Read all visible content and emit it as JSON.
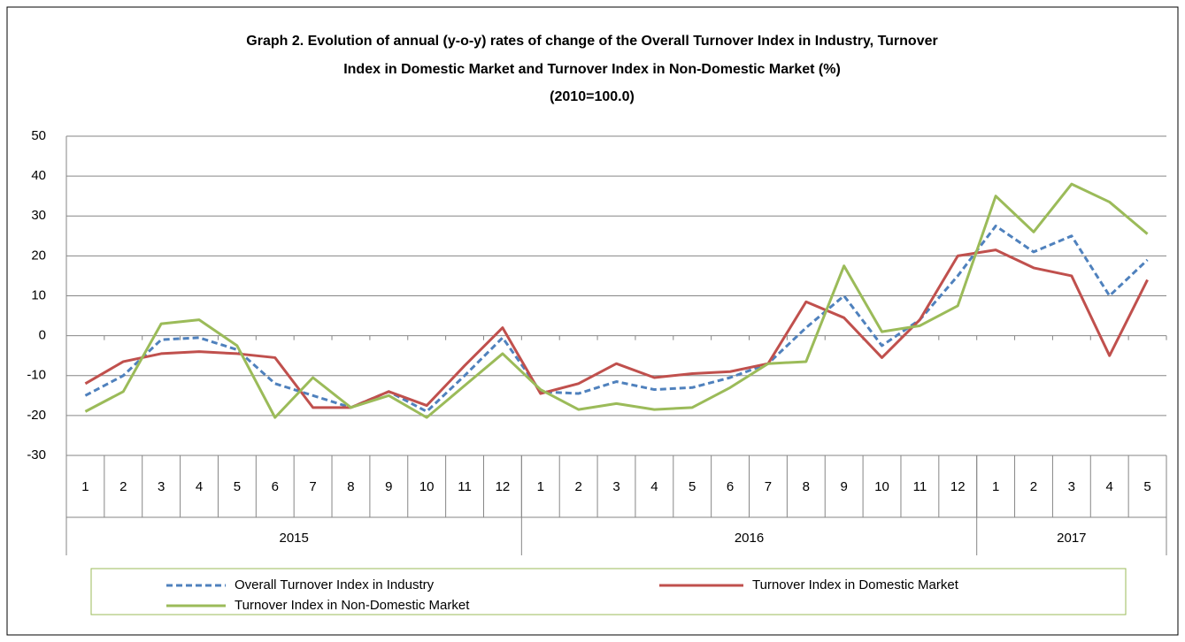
{
  "chart_data": {
    "type": "line",
    "title": [
      "Graph 2. Evolution of annual (y-o-y) rates of change of the  Overall Turnover Index in Industry, Turnover",
      "Index  in Domestic Market and Turnover Index in Non-Domestic Market  (%)",
      "(2010=100.0)"
    ],
    "groups": [
      {
        "label": "2015",
        "months": [
          "1",
          "2",
          "3",
          "4",
          "5",
          "6",
          "7",
          "8",
          "9",
          "10",
          "11",
          "12"
        ]
      },
      {
        "label": "2016",
        "months": [
          "1",
          "2",
          "3",
          "4",
          "5",
          "6",
          "7",
          "8",
          "9",
          "10",
          "11",
          "12"
        ]
      },
      {
        "label": "2017",
        "months": [
          "1",
          "2",
          "3",
          "4",
          "5"
        ]
      }
    ],
    "series": [
      {
        "name": "Overall Turnover Index in Industry",
        "color": "#4f81bd",
        "dash": true,
        "values": [
          -15,
          -10,
          -1,
          -0.5,
          -3.5,
          -12,
          -15,
          -18,
          -14,
          -19,
          -10,
          -0.5,
          -14,
          -14.5,
          -11.5,
          -13.5,
          -13,
          -10.5,
          -7,
          2,
          10,
          -2.5,
          4,
          15,
          27.5,
          21,
          25,
          10,
          19
        ]
      },
      {
        "name": "Turnover Index in Domestic Market",
        "color": "#c0504d",
        "dash": false,
        "values": [
          -12,
          -6.5,
          -4.5,
          -4,
          -4.5,
          -5.5,
          -18,
          -18,
          -14,
          -17.5,
          -7.5,
          2,
          -14.5,
          -12,
          -7,
          -10.5,
          -9.5,
          -9,
          -7,
          8.5,
          4.5,
          -5.5,
          4,
          20,
          21.5,
          17,
          15,
          -5,
          14
        ]
      },
      {
        "name": "Turnover Index in Non-Domestic Market",
        "color": "#9bbb59",
        "dash": false,
        "values": [
          -19,
          -14,
          3,
          4,
          -2.5,
          -20.5,
          -10.5,
          -18,
          -15,
          -20.5,
          -12.5,
          -4.5,
          -13.5,
          -18.5,
          -17,
          -18.5,
          -18,
          -13,
          -7,
          -6.5,
          17.5,
          1,
          2.5,
          7.5,
          35,
          26,
          38,
          33.5,
          25.5
        ]
      }
    ],
    "ylim": [
      -30,
      50
    ],
    "yticks": [
      -30,
      -20,
      -10,
      0,
      10,
      20,
      30,
      40,
      50
    ],
    "grid": true
  }
}
